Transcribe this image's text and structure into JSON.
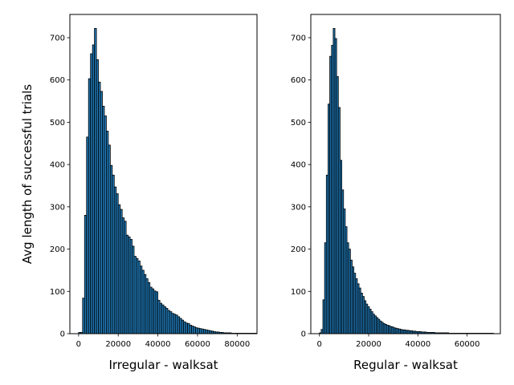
{
  "chart_data": [
    {
      "type": "bar",
      "subtype": "histogram",
      "ylabel": "Avg length of successful trials",
      "xlabel": "Irregular - walksat",
      "xlim": [
        -4400,
        90000
      ],
      "ylim": [
        0,
        755
      ],
      "xticks": [
        0,
        20000,
        40000,
        60000,
        80000
      ],
      "yticks": [
        0,
        100,
        200,
        300,
        400,
        500,
        600,
        700
      ],
      "bar_color": "#1f77b4",
      "edge_color": "#000000",
      "bin_width": 1000,
      "bin_start": 0,
      "values": [
        3,
        3,
        84,
        280,
        465,
        603,
        662,
        683,
        722,
        648,
        595,
        573,
        538,
        515,
        479,
        446,
        398,
        375,
        347,
        331,
        305,
        294,
        274,
        266,
        233,
        229,
        223,
        207,
        183,
        178,
        172,
        160,
        150,
        140,
        130,
        121,
        110,
        106,
        101,
        99,
        79,
        72,
        68,
        64,
        60,
        55,
        52,
        48,
        46,
        44,
        40,
        36,
        32,
        28,
        25,
        24,
        20,
        18,
        16,
        14,
        13,
        12,
        11,
        10,
        9,
        8,
        7,
        6,
        5,
        4,
        4,
        3,
        3,
        2,
        2,
        2,
        2,
        1,
        1,
        1,
        1,
        1,
        1,
        1,
        1,
        1,
        1,
        1,
        1,
        1
      ]
    },
    {
      "type": "bar",
      "subtype": "histogram",
      "xlabel": "Regular - walksat",
      "xlim": [
        -3500,
        73500
      ],
      "ylim": [
        0,
        755
      ],
      "xticks": [
        0,
        20000,
        40000,
        60000
      ],
      "yticks": [
        0,
        100,
        200,
        300,
        400,
        500,
        600,
        700
      ],
      "bar_color": "#1f77b4",
      "edge_color": "#000000",
      "bin_width": 700,
      "bin_start": 0,
      "values": [
        2,
        10,
        80,
        215,
        375,
        543,
        656,
        682,
        722,
        698,
        608,
        535,
        410,
        340,
        295,
        253,
        215,
        200,
        174,
        158,
        143,
        130,
        118,
        108,
        96,
        88,
        78,
        70,
        64,
        58,
        52,
        46,
        42,
        38,
        34,
        30,
        27,
        24,
        22,
        20,
        19,
        17,
        16,
        14,
        13,
        12,
        11,
        10,
        9,
        9,
        8,
        8,
        7,
        7,
        6,
        6,
        5,
        5,
        5,
        4,
        4,
        4,
        3,
        3,
        3,
        3,
        3,
        2,
        2,
        2,
        2,
        2,
        2,
        2,
        2,
        1,
        1,
        1,
        1,
        1,
        1,
        1,
        1,
        1,
        1,
        1,
        1,
        1,
        1,
        1,
        1,
        1,
        1,
        1,
        1,
        1,
        1,
        1,
        1,
        1,
        1
      ]
    }
  ]
}
